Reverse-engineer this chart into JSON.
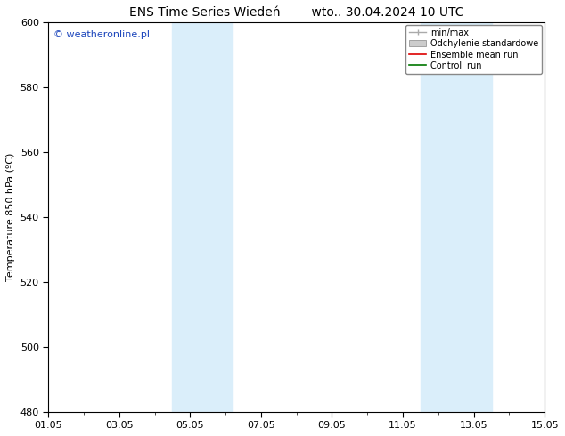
{
  "title": "ENS Time Series Wiedeń        wto.. 30.04.2024 10 UTC",
  "ylabel": "Temperature 850 hPa (ºC)",
  "watermark": "© weatheronline.pl",
  "x_labels": [
    "01.05",
    "03.05",
    "05.05",
    "07.05",
    "09.05",
    "11.05",
    "13.05",
    "15.05"
  ],
  "x_tick_positions": [
    0,
    2,
    4,
    6,
    8,
    10,
    12,
    14
  ],
  "xlim": [
    0,
    14
  ],
  "ylim": [
    480,
    600
  ],
  "yticks": [
    480,
    500,
    520,
    540,
    560,
    580,
    600
  ],
  "background_color": "#ffffff",
  "plot_bg_color": "#ffffff",
  "shaded_bands": [
    {
      "x_start": 3.5,
      "x_end": 5.2,
      "color": "#daeefa"
    },
    {
      "x_start": 10.5,
      "x_end": 12.5,
      "color": "#daeefa"
    }
  ],
  "legend_entries": [
    {
      "label": "min/max",
      "color": "#aaaaaa"
    },
    {
      "label": "Odchylenie standardowe",
      "color": "#cccccc"
    },
    {
      "label": "Ensemble mean run",
      "color": "#dd0000"
    },
    {
      "label": "Controll run",
      "color": "#007700"
    }
  ],
  "watermark_color": "#1a44bb",
  "title_fontsize": 10,
  "ylabel_fontsize": 8,
  "tick_fontsize": 8,
  "legend_fontsize": 7,
  "watermark_fontsize": 8
}
